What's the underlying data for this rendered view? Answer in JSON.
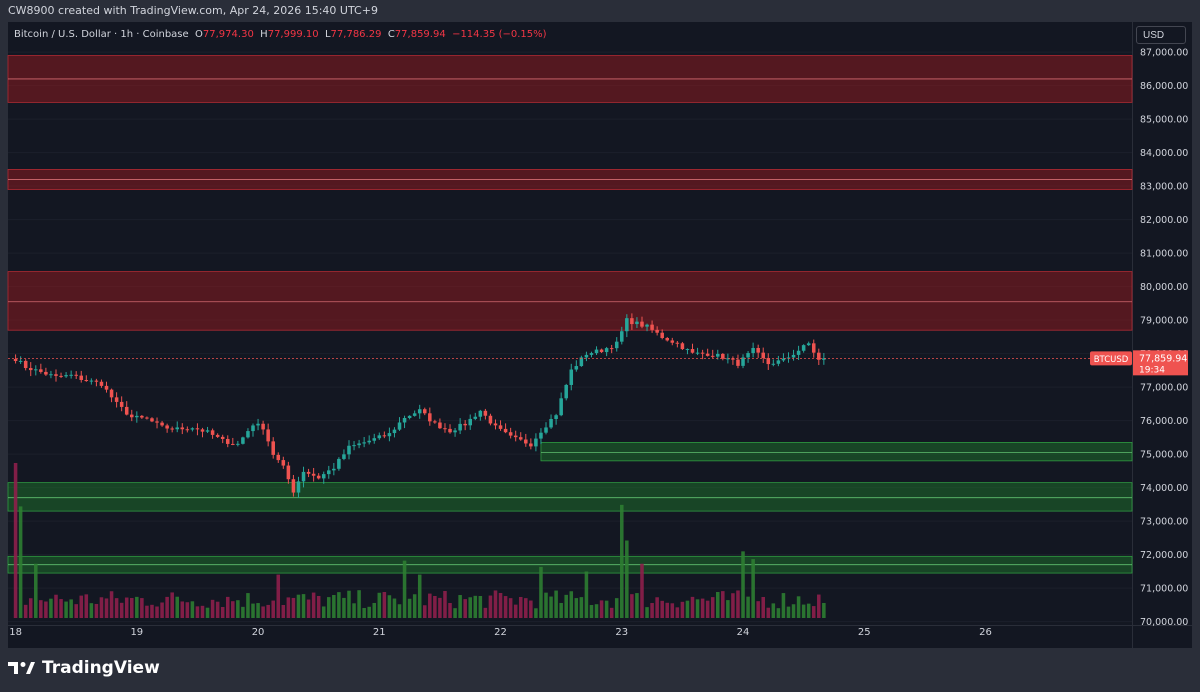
{
  "header": {
    "attribution": "CW8900 created with TradingView.com, Apr 24, 2026 15:40 UTC+9"
  },
  "legend": {
    "symbol": "Bitcoin / U.S. Dollar · 1h · Coinbase",
    "o_label": "O",
    "o": "77,974.30",
    "h_label": "H",
    "h": "77,999.10",
    "l_label": "L",
    "l": "77,786.29",
    "c_label": "C",
    "c": "77,859.94",
    "change": "−114.35 (−0.15%)"
  },
  "currency": "USD",
  "ticker": {
    "symbol": "BTCUSD",
    "price": "77,859.94",
    "countdown": "19:34"
  },
  "brand": {
    "name": "TradingView"
  },
  "colors": {
    "up": "#26a69a",
    "down": "#ef5350",
    "zone_red": "#8b1a1f",
    "zone_green": "#1d6b2a",
    "bg": "#131722"
  },
  "chart_data": {
    "type": "candlestick",
    "timeframe": "1h",
    "ylim": [
      69900,
      87900
    ],
    "yticks": [
      70000,
      71000,
      72000,
      73000,
      74000,
      75000,
      76000,
      77000,
      78000,
      79000,
      80000,
      81000,
      82000,
      83000,
      84000,
      85000,
      86000,
      87000
    ],
    "ytick_labels": [
      "70,000.00",
      "71,000.00",
      "72,000.00",
      "73,000.00",
      "74,000.00",
      "75,000.00",
      "76,000.00",
      "77,000.00",
      "78,000.00",
      "79,000.00",
      "80,000.00",
      "81,000.00",
      "82,000.00",
      "83,000.00",
      "84,000.00",
      "85,000.00",
      "86,000.00",
      "87,000.00"
    ],
    "xticks": [
      {
        "label": "18",
        "hour": 0
      },
      {
        "label": "19",
        "hour": 24
      },
      {
        "label": "20",
        "hour": 48
      },
      {
        "label": "21",
        "hour": 72
      },
      {
        "label": "22",
        "hour": 96
      },
      {
        "label": "23",
        "hour": 120
      },
      {
        "label": "24",
        "hour": 144
      },
      {
        "label": "25",
        "hour": 168
      },
      {
        "label": "26",
        "hour": 192
      }
    ],
    "x_range_hours": [
      -1.5,
      221
    ],
    "last_price": 77859.94,
    "zones": [
      {
        "kind": "resistance",
        "top": 86900,
        "bottom": 85500,
        "mid": 86200
      },
      {
        "kind": "resistance",
        "top": 83500,
        "bottom": 82900,
        "mid": 83200
      },
      {
        "kind": "resistance",
        "top": 80450,
        "bottom": 78700,
        "mid": 79550
      },
      {
        "kind": "support",
        "top": 75350,
        "bottom": 74800,
        "mid": 75050,
        "start_hour": 104
      },
      {
        "kind": "support",
        "top": 74150,
        "bottom": 73300,
        "mid": 73700
      },
      {
        "kind": "support",
        "top": 71950,
        "bottom": 71450,
        "mid": 71700
      }
    ],
    "anchor_closes": [
      [
        0,
        77850
      ],
      [
        2,
        77600
      ],
      [
        5,
        77450
      ],
      [
        8,
        77300
      ],
      [
        11,
        77350
      ],
      [
        14,
        77200
      ],
      [
        17,
        77100
      ],
      [
        20,
        76500
      ],
      [
        23,
        76100
      ],
      [
        26,
        76050
      ],
      [
        29,
        75800
      ],
      [
        32,
        75750
      ],
      [
        35,
        75800
      ],
      [
        38,
        75650
      ],
      [
        41,
        75400
      ],
      [
        44,
        75300
      ],
      [
        47,
        75900
      ],
      [
        49,
        75800
      ],
      [
        51,
        75000
      ],
      [
        53,
        74600
      ],
      [
        55,
        73900
      ],
      [
        57,
        74500
      ],
      [
        60,
        74300
      ],
      [
        63,
        74600
      ],
      [
        66,
        75200
      ],
      [
        70,
        75400
      ],
      [
        74,
        75600
      ],
      [
        77,
        76100
      ],
      [
        80,
        76300
      ],
      [
        83,
        75900
      ],
      [
        86,
        75700
      ],
      [
        89,
        75900
      ],
      [
        92,
        76300
      ],
      [
        95,
        75800
      ],
      [
        98,
        75500
      ],
      [
        102,
        75300
      ],
      [
        104,
        75700
      ],
      [
        107,
        76200
      ],
      [
        110,
        77500
      ],
      [
        113,
        78000
      ],
      [
        116,
        78100
      ],
      [
        119,
        78300
      ],
      [
        121,
        79000
      ],
      [
        123,
        78900
      ],
      [
        125,
        78800
      ],
      [
        128,
        78500
      ],
      [
        131,
        78300
      ],
      [
        134,
        78000
      ],
      [
        137,
        78000
      ],
      [
        140,
        77900
      ],
      [
        143,
        77700
      ],
      [
        146,
        78100
      ],
      [
        149,
        77700
      ],
      [
        152,
        77800
      ],
      [
        155,
        78100
      ],
      [
        157,
        78300
      ],
      [
        159,
        77800
      ],
      [
        160,
        77860
      ]
    ],
    "volume_relative": {
      "note": "relative volume heights, proportional",
      "spikes": [
        [
          0,
          1.0
        ],
        [
          1,
          0.72
        ],
        [
          4,
          0.35
        ],
        [
          52,
          0.28
        ],
        [
          77,
          0.37
        ],
        [
          80,
          0.28
        ],
        [
          104,
          0.33
        ],
        [
          113,
          0.3
        ],
        [
          120,
          0.73
        ],
        [
          121,
          0.5
        ],
        [
          124,
          0.35
        ],
        [
          144,
          0.43
        ],
        [
          146,
          0.38
        ]
      ]
    }
  }
}
